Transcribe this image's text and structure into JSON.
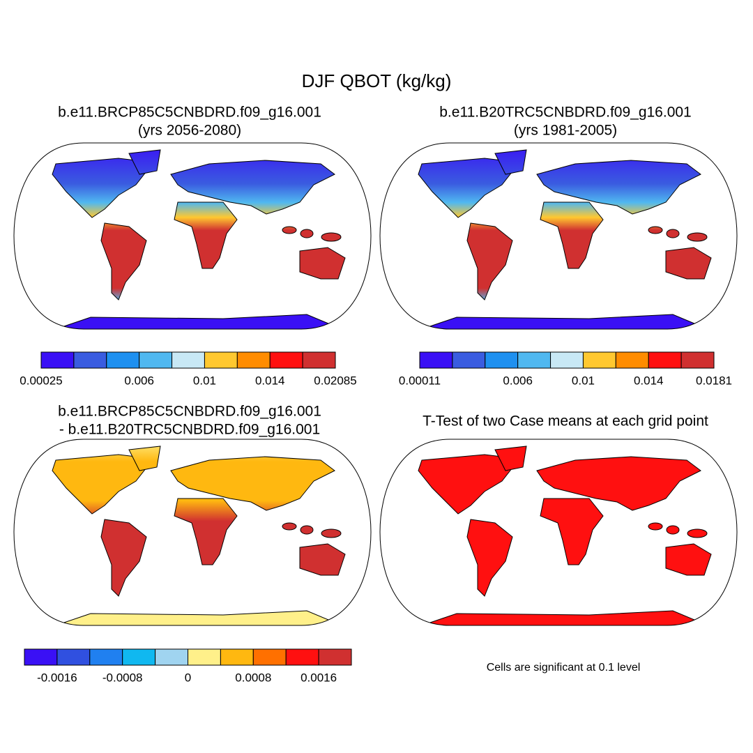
{
  "title": "DJF QBOT (kg/kg)",
  "panels": [
    {
      "title": [
        "b.e11.BRCP85C5CNBDRD.f09_g16.001",
        "(yrs 2056-2080)"
      ],
      "colorbar": {
        "colors": [
          "#3a10f5",
          "#3a5ce0",
          "#1e90f0",
          "#50b8f0",
          "#c8e8f5",
          "#ffc830",
          "#ff8c00",
          "#ff1010",
          "#d03030"
        ],
        "ticks": [
          0.00025,
          0.006,
          0.01,
          0.014,
          0.02085
        ]
      }
    },
    {
      "title": [
        "b.e11.B20TRC5CNBDRD.f09_g16.001",
        "(yrs 1981-2005)"
      ],
      "colorbar": {
        "colors": [
          "#3a10f5",
          "#3a5ce0",
          "#1e90f0",
          "#50b8f0",
          "#c8e8f5",
          "#ffc830",
          "#ff8c00",
          "#ff1010",
          "#d03030"
        ],
        "ticks": [
          0.00011,
          0.006,
          0.01,
          0.014,
          0.0181
        ]
      }
    },
    {
      "title": [
        "b.e11.BRCP85C5CNBDRD.f09_g16.001",
        "- b.e11.B20TRC5CNBDRD.f09_g16.001"
      ],
      "colorbar": {
        "colors": [
          "#3a10f5",
          "#3050e0",
          "#2080f0",
          "#10b8f0",
          "#a0d4f0",
          "#fff08a",
          "#ffb810",
          "#ff7000",
          "#ff1010",
          "#d03030"
        ],
        "ticks": [
          -0.0016,
          -0.0008,
          0,
          0.0008,
          0.0016
        ]
      }
    },
    {
      "title": [
        "T-Test of two Case means at each grid point"
      ],
      "note": "Cells are significant at 0.1 level"
    }
  ]
}
